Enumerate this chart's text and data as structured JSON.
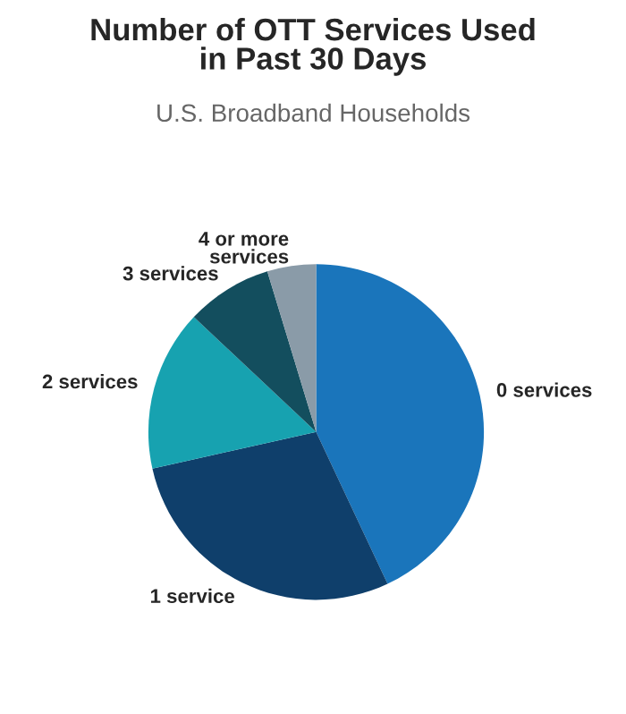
{
  "chart_data": {
    "type": "pie",
    "title": "Number of OTT Services Used\nin Past 30 Days",
    "subtitle": "U.S. Broadband Households",
    "categories": [
      "0 services",
      "1 service",
      "2 services",
      "3 services",
      "4 or more\nservices"
    ],
    "values": [
      43,
      28.5,
      15.5,
      8.3,
      4.7
    ],
    "colors": [
      "#1a75bb",
      "#0f3f6b",
      "#17a2b0",
      "#134e5e",
      "#8a9ba8"
    ]
  }
}
